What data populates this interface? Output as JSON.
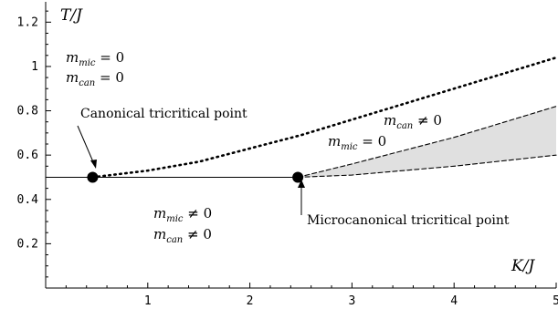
{
  "chart_data": {
    "type": "line",
    "title": "",
    "xlabel": "K/J",
    "ylabel": "T/J",
    "xlim": [
      0,
      5
    ],
    "ylim": [
      0,
      1.3
    ],
    "xticks": [
      1,
      2,
      3,
      4,
      5
    ],
    "xtick_labels": [
      "1",
      "2",
      "3",
      "4",
      "5"
    ],
    "yticks": [
      0.2,
      0.4,
      0.6,
      0.8,
      1.0,
      1.2
    ],
    "ytick_labels": [
      "0.2",
      "0.4",
      "0.6",
      "0.8",
      "1",
      "1.2"
    ],
    "grid": false,
    "series": [
      {
        "style": "solid",
        "x": [
          0.0,
          2.47
        ],
        "y": [
          0.5,
          0.5
        ]
      },
      {
        "style": "dotted",
        "x": [
          0.46,
          1.0,
          1.5,
          2.0,
          2.5,
          3.0,
          3.5,
          4.0,
          4.5,
          5.0
        ],
        "y": [
          0.5,
          0.53,
          0.57,
          0.63,
          0.69,
          0.76,
          0.83,
          0.9,
          0.97,
          1.04
        ]
      },
      {
        "style": "dashed",
        "x": [
          2.47,
          3.0,
          3.5,
          4.0,
          4.5,
          5.0
        ],
        "y": [
          0.5,
          0.56,
          0.62,
          0.68,
          0.75,
          0.82
        ]
      },
      {
        "style": "dashed",
        "x": [
          2.47,
          3.0,
          3.5,
          4.0,
          4.5,
          5.0
        ],
        "y": [
          0.5,
          0.51,
          0.53,
          0.55,
          0.575,
          0.6
        ]
      }
    ],
    "shaded_region": {
      "fill": "#e0e0e0",
      "x": [
        2.47,
        3.0,
        3.5,
        4.0,
        4.5,
        5.0
      ],
      "upper": [
        0.5,
        0.56,
        0.62,
        0.68,
        0.75,
        0.82
      ],
      "lower": [
        0.5,
        0.51,
        0.53,
        0.55,
        0.575,
        0.6
      ]
    },
    "points": [
      {
        "name": "canonical-tricritical-point",
        "x": 0.46,
        "y": 0.5
      },
      {
        "name": "microcanonical-tricritical-point",
        "x": 2.47,
        "y": 0.5
      }
    ],
    "annotations": {
      "canonical_label": "Canonical tricritical point",
      "microcanonical_label": "Microcanonical tricritical point",
      "region_top_left": {
        "line1_sub": "mic",
        "line1_rel": " = 0",
        "line2_sub": "can",
        "line2_rel": " = 0"
      },
      "region_bottom": {
        "line1_sub": "mic",
        "line1_rel": " ≠ 0",
        "line2_sub": "can",
        "line2_rel": " ≠ 0"
      },
      "region_right": {
        "line1_sub": "can",
        "line1_rel": " ≠ 0",
        "line2_sub": "mic",
        "line2_rel": " = 0"
      }
    }
  }
}
